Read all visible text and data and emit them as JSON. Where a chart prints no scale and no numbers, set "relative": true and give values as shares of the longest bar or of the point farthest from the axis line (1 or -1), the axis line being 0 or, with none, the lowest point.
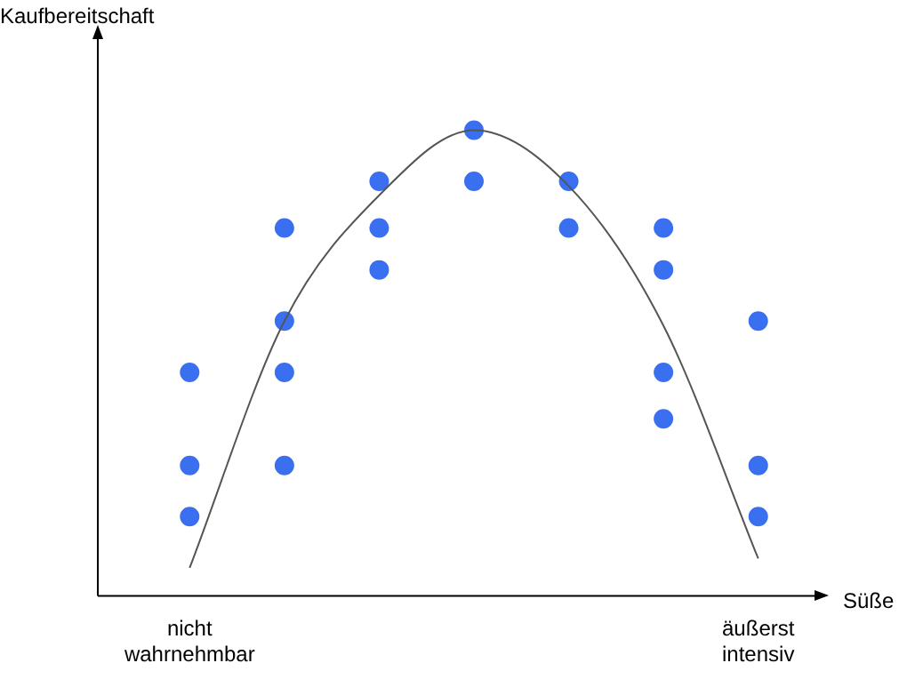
{
  "chart_data": {
    "type": "scatter",
    "relative": true,
    "xlabel": "Süße",
    "ylabel": "Kaufbereitschaft",
    "marker": "circle",
    "categories": [
      "nicht wahrnehmbar",
      null,
      null,
      null,
      null,
      null,
      "äußerst intensiv"
    ],
    "series": [
      {
        "color": "#3a6ff0",
        "values": [
          0.48,
          0.79,
          0.89,
          1.0,
          0.89,
          0.79,
          0.59
        ]
      },
      {
        "color": "#3a6ff0",
        "values": [
          0.28,
          0.59,
          0.79,
          0.89,
          0.79,
          0.7,
          0.28
        ]
      },
      {
        "color": "#3a6ff0",
        "values": [
          0.17,
          0.48,
          0.7,
          null,
          null,
          0.48,
          0.17
        ]
      },
      {
        "color": "#3a6ff0",
        "values": [
          null,
          0.28,
          null,
          null,
          null,
          0.38,
          null
        ]
      },
      {
        "type": "line",
        "color": "#555555",
        "marker": "none",
        "values": [
          0.06,
          0.59,
          0.86,
          1.0,
          0.88,
          0.58,
          0.08
        ]
      }
    ]
  }
}
